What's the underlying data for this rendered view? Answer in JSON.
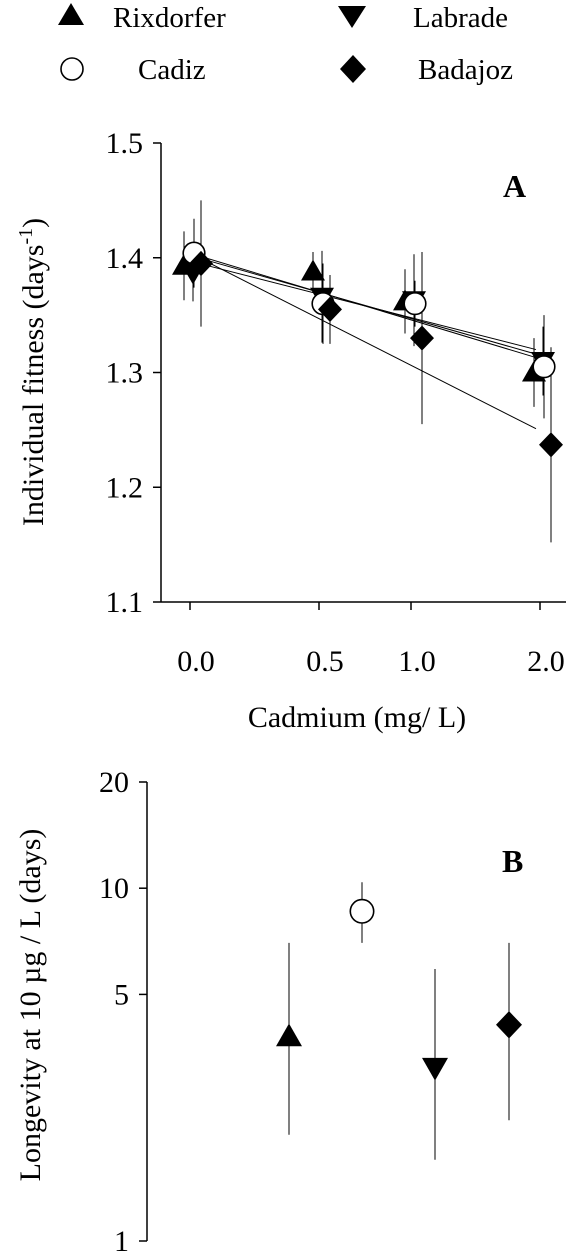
{
  "legend": [
    {
      "name": "Rixdorfer",
      "marker": "triangle-up"
    },
    {
      "name": "Labrade",
      "marker": "triangle-down"
    },
    {
      "name": "Cadiz",
      "marker": "circle-open"
    },
    {
      "name": "Badajoz",
      "marker": "diamond"
    }
  ],
  "chart_data": [
    {
      "panel": "A",
      "type": "scatter",
      "xlabel": "Cadmium (mg/ L)",
      "ylabel": "Individual fitness (days",
      "ylabel_sup": "-1",
      "ylabel_close": ")",
      "ylim": [
        1.1,
        1.5
      ],
      "yticks": [
        1.1,
        1.2,
        1.3,
        1.4,
        1.5
      ],
      "ytick_labels": [
        "1.1",
        "1.2",
        "1.3",
        "1.4",
        "1.5"
      ],
      "categories": [
        "0.0",
        "0.5",
        "1.0",
        "2.0"
      ],
      "axis_scale": "categorical, unequal spacing",
      "series": [
        {
          "name": "Rixdorfer",
          "marker": "triangle-up",
          "values": [
            1.393,
            1.388,
            1.362,
            1.3
          ],
          "errors": [
            0.03,
            0.017,
            0.028,
            0.03
          ],
          "fit": [
            1.397,
            1.32
          ]
        },
        {
          "name": "Labrade",
          "marker": "triangle-down",
          "values": [
            1.387,
            1.366,
            1.363,
            1.31
          ],
          "errors": [
            0.025,
            0.04,
            0.04,
            0.03
          ],
          "fit": [
            1.402,
            1.316
          ]
        },
        {
          "name": "Cadiz",
          "marker": "circle-open",
          "values": [
            1.404,
            1.36,
            1.36,
            1.305
          ],
          "errors": [
            0.03,
            0.035,
            0.02,
            0.045
          ],
          "fit": [
            1.404,
            1.313
          ]
        },
        {
          "name": "Badajoz",
          "marker": "diamond",
          "values": [
            1.395,
            1.355,
            1.33,
            1.237
          ],
          "errors": [
            0.055,
            0.03,
            0.075,
            0.085
          ],
          "fit": [
            1.404,
            1.251
          ]
        }
      ],
      "grid": false
    },
    {
      "panel": "B",
      "type": "scatter",
      "ylabel": "Longevity at 10 µg / L (days)",
      "yscale": "log",
      "ylim": [
        1,
        20
      ],
      "yticks": [
        1,
        5,
        10,
        20
      ],
      "ytick_labels": [
        "1",
        "5",
        "10",
        "20"
      ],
      "series": [
        {
          "name": "Rixdorfer",
          "marker": "triangle-up",
          "value": 3.8,
          "lower": 2.0,
          "upper": 7.0
        },
        {
          "name": "Cadiz",
          "marker": "circle-open",
          "value": 8.6,
          "lower": 7.0,
          "upper": 10.4
        },
        {
          "name": "Labrade",
          "marker": "triangle-down",
          "value": 3.1,
          "lower": 1.7,
          "upper": 5.9
        },
        {
          "name": "Badajoz",
          "marker": "diamond",
          "value": 4.1,
          "lower": 2.2,
          "upper": 7.0
        }
      ],
      "grid": false
    }
  ]
}
